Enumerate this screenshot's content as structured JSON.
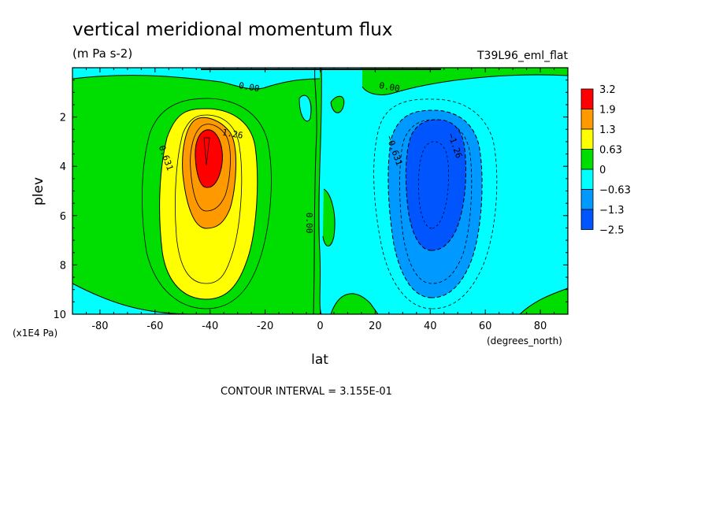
{
  "chart_data": {
    "type": "heatmap",
    "title": "vertical meridional momentum flux",
    "units": "(m Pa s-2)",
    "run_label": "T39L96_eml_flat",
    "xlabel": "lat",
    "x_units": "(degrees_north)",
    "ylabel": "plev",
    "y_units": "(x1E4 Pa)",
    "xlim": [
      -90,
      90
    ],
    "ylim": [
      10,
      0
    ],
    "x_ticks": [
      "-80",
      "-60",
      "-40",
      "-20",
      "0",
      "20",
      "40",
      "60",
      "80"
    ],
    "y_ticks": [
      "2",
      "4",
      "6",
      "8",
      "10"
    ],
    "footer": "CONTOUR INTERVAL = 3.155E-01",
    "colorbar": {
      "labels": [
        "3.2",
        "1.9",
        "1.3",
        "0.63",
        "0",
        "−0.63",
        "−1.3",
        "−2.5"
      ],
      "colors": [
        "#ff0000",
        "#ff9900",
        "#ffff00",
        "#00dd00",
        "#00ffff",
        "#0099ff",
        "#0055ff"
      ]
    },
    "contour_labels": [
      {
        "text": "0.00",
        "lat": -26,
        "plev": 0.9
      },
      {
        "text": "0.00",
        "lat": 25,
        "plev": 0.9
      },
      {
        "text": "0.00",
        "lat": -5,
        "plev": 6.3
      },
      {
        "text": "0.631",
        "lat": -57,
        "plev": 3.7
      },
      {
        "text": "1.26",
        "lat": -32,
        "plev": 2.8
      },
      {
        "text": "−0.631",
        "lat": 26,
        "plev": 3.4
      },
      {
        "text": "−1.26",
        "lat": 48,
        "plev": 3.2
      }
    ],
    "features": {
      "positive_max": {
        "lat": -40,
        "plev": 3.5,
        "value": 3.2
      },
      "negative_min": {
        "lat": 40,
        "plev": 4.0,
        "value": -2.5
      }
    }
  }
}
